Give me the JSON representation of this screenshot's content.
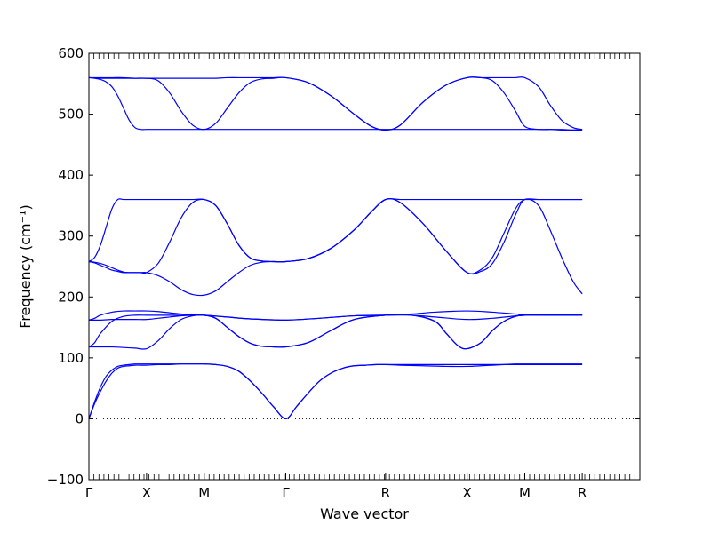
{
  "chart_data": {
    "type": "line",
    "title": "",
    "xlabel": "Wave vector",
    "ylabel": "Frequency (cm⁻¹)",
    "ylim": [
      -100,
      600
    ],
    "yticks": [
      -100,
      0,
      100,
      200,
      300,
      400,
      500,
      600
    ],
    "xlim": [
      0,
      4.778
    ],
    "high_symmetry_points": [
      {
        "label": "Γ",
        "x": 0.0
      },
      {
        "label": "X",
        "x": 0.5
      },
      {
        "label": "M",
        "x": 1.0
      },
      {
        "label": "Γ",
        "x": 1.707
      },
      {
        "label": "R",
        "x": 2.573
      },
      {
        "label": "X",
        "x": 3.28
      },
      {
        "label": "M",
        "x": 3.78
      },
      {
        "label": "R",
        "x": 4.278
      }
    ],
    "zero_line": {
      "y": 0,
      "style": "dotted"
    },
    "line_color": "#0000ff",
    "grid": false,
    "series": [
      {
        "x": [
          0,
          0.05,
          0.1,
          0.15,
          0.2,
          0.25,
          0.3,
          0.35,
          0.4,
          0.45,
          0.5,
          0.6,
          0.7,
          0.8,
          0.9,
          1.0,
          1.1,
          1.2,
          1.3,
          1.4,
          1.5,
          1.6,
          1.707,
          1.8,
          1.9,
          2.0,
          2.1,
          2.2,
          2.3,
          2.4,
          2.5,
          2.573,
          2.7,
          2.9,
          3.1,
          3.28,
          3.4,
          3.5,
          3.6,
          3.7,
          3.78,
          3.9,
          4.1,
          4.278
        ],
        "y": [
          0,
          25,
          45,
          62,
          75,
          83,
          86,
          87,
          88,
          88,
          88,
          89,
          89,
          90,
          90,
          90,
          89,
          86,
          78,
          62,
          42,
          20,
          0,
          20,
          42,
          62,
          75,
          83,
          87,
          88,
          89,
          89,
          89,
          89,
          89,
          89,
          89,
          89,
          89,
          89,
          89,
          89,
          89,
          89
        ]
      },
      {
        "x": [
          0,
          0.05,
          0.1,
          0.15,
          0.2,
          0.25,
          0.3,
          0.35,
          0.4,
          0.45,
          0.5,
          0.6,
          0.7,
          0.8,
          0.9,
          1.0,
          1.1,
          1.2,
          1.3,
          1.4,
          1.5,
          1.6,
          1.707,
          1.8,
          1.9,
          2.0,
          2.1,
          2.2,
          2.3,
          2.4,
          2.5,
          2.573,
          2.7,
          2.9,
          3.1,
          3.28,
          3.4,
          3.5,
          3.6,
          3.7,
          3.78,
          3.9,
          4.1,
          4.278
        ],
        "y": [
          0,
          28,
          52,
          70,
          80,
          86,
          88,
          89,
          90,
          90,
          90,
          90,
          90,
          90,
          90,
          90,
          89,
          86,
          78,
          62,
          42,
          20,
          0,
          20,
          42,
          62,
          75,
          83,
          87,
          88,
          89,
          89,
          88,
          87,
          86,
          86,
          87,
          88,
          89,
          90,
          90,
          90,
          90,
          90
        ]
      },
      {
        "x": [
          0,
          0.1,
          0.2,
          0.3,
          0.4,
          0.5,
          0.6,
          0.7,
          0.8,
          0.9,
          1.0,
          1.1,
          1.2,
          1.3,
          1.4,
          1.5,
          1.6,
          1.707,
          1.9,
          2.1,
          2.3,
          2.573,
          2.8,
          3.0,
          3.1,
          3.2,
          3.28,
          3.4,
          3.5,
          3.6,
          3.7,
          3.78,
          4.0,
          4.278
        ],
        "y": [
          118,
          118,
          118,
          117,
          116,
          115,
          128,
          148,
          163,
          169,
          170,
          165,
          150,
          135,
          124,
          119,
          118,
          118,
          125,
          145,
          163,
          170,
          170,
          160,
          140,
          120,
          115,
          125,
          145,
          160,
          168,
          170,
          170,
          170
        ]
      },
      {
        "x": [
          0,
          0.05,
          0.1,
          0.2,
          0.3,
          0.4,
          0.5,
          0.6,
          0.7,
          0.8,
          0.9,
          1.0,
          1.1,
          1.2,
          1.3,
          1.4,
          1.5,
          1.6,
          1.707,
          1.9,
          2.1,
          2.3,
          2.573,
          2.8,
          3.0,
          3.1,
          3.2,
          3.28,
          3.4,
          3.5,
          3.6,
          3.7,
          3.78,
          4.0,
          4.278
        ],
        "y": [
          118,
          125,
          140,
          160,
          168,
          170,
          170,
          170,
          170,
          170,
          170,
          170,
          165,
          150,
          135,
          124,
          119,
          118,
          118,
          125,
          145,
          163,
          170,
          170,
          160,
          140,
          120,
          115,
          125,
          145,
          160,
          168,
          170,
          170,
          170
        ]
      },
      {
        "x": [
          0,
          0.1,
          0.2,
          0.3,
          0.4,
          0.5,
          0.6,
          0.7,
          0.8,
          0.9,
          1.0,
          1.2,
          1.4,
          1.707,
          2.0,
          2.3,
          2.573,
          2.8,
          3.0,
          3.28,
          3.5,
          3.78,
          4.0,
          4.278
        ],
        "y": [
          162,
          162,
          163,
          163,
          163,
          163,
          165,
          167,
          169,
          170,
          170,
          167,
          164,
          162,
          165,
          169,
          170,
          170,
          167,
          163,
          165,
          170,
          170,
          170
        ]
      },
      {
        "x": [
          0,
          0.05,
          0.1,
          0.2,
          0.3,
          0.4,
          0.5,
          0.6,
          0.7,
          0.8,
          0.9,
          1.0,
          1.2,
          1.4,
          1.707,
          2.0,
          2.3,
          2.573,
          2.8,
          3.0,
          3.28,
          3.5,
          3.78,
          4.0,
          4.278
        ],
        "y": [
          162,
          165,
          170,
          175,
          177,
          177,
          177,
          176,
          174,
          172,
          171,
          170,
          167,
          164,
          162,
          165,
          169,
          170,
          172,
          175,
          177,
          175,
          171,
          171,
          171
        ]
      },
      {
        "x": [
          0,
          0.05,
          0.1,
          0.15,
          0.2,
          0.25,
          0.3,
          0.35,
          0.4,
          0.45,
          0.5,
          0.6,
          0.7,
          0.8,
          0.9,
          1.0,
          1.1,
          1.2,
          1.3,
          1.4,
          1.5,
          1.6,
          1.707,
          1.9,
          2.1,
          2.3,
          2.45,
          2.573,
          2.7,
          2.9,
          3.1,
          3.28,
          3.4,
          3.5,
          3.6,
          3.7,
          3.78,
          3.9,
          4.0,
          4.1,
          4.2,
          4.278
        ],
        "y": [
          258,
          257,
          255,
          252,
          248,
          244,
          241,
          240,
          240,
          240,
          240,
          235,
          225,
          212,
          204,
          203,
          210,
          225,
          240,
          252,
          257,
          258,
          258,
          263,
          280,
          310,
          340,
          360,
          355,
          320,
          275,
          240,
          242,
          255,
          290,
          335,
          360,
          350,
          310,
          265,
          225,
          205
        ]
      },
      {
        "x": [
          0,
          0.05,
          0.1,
          0.15,
          0.2,
          0.25,
          0.3,
          0.35,
          0.4,
          0.45,
          0.5,
          0.6,
          0.7,
          0.8,
          0.9,
          1.0,
          1.1,
          1.2,
          1.3,
          1.4,
          1.5,
          1.6,
          1.707,
          1.9,
          2.1,
          2.3,
          2.45,
          2.573,
          2.7,
          2.9,
          3.1,
          3.28,
          3.4,
          3.5,
          3.6,
          3.7,
          3.78,
          3.9,
          4.0,
          4.1,
          4.2,
          4.278
        ],
        "y": [
          258,
          256,
          252,
          248,
          244,
          242,
          240,
          240,
          240,
          240,
          240,
          255,
          290,
          330,
          355,
          360,
          350,
          320,
          285,
          264,
          259,
          258,
          258,
          263,
          280,
          310,
          340,
          360,
          360,
          360,
          360,
          360,
          360,
          360,
          360,
          360,
          360,
          360,
          360,
          360,
          360,
          360
        ]
      },
      {
        "x": [
          0,
          0.05,
          0.1,
          0.15,
          0.2,
          0.25,
          0.3,
          0.35,
          0.4,
          0.45,
          0.5,
          0.6,
          0.7,
          0.8,
          0.9,
          1.0,
          1.1,
          1.2,
          1.3,
          1.4,
          1.5,
          1.6,
          1.707,
          1.9,
          2.1,
          2.3,
          2.45,
          2.573,
          2.7,
          2.9,
          3.1,
          3.28,
          3.4,
          3.5,
          3.6,
          3.7,
          3.78,
          3.9,
          4.0,
          4.1,
          4.2,
          4.278
        ],
        "y": [
          258,
          265,
          285,
          315,
          345,
          360,
          360,
          360,
          360,
          360,
          360,
          360,
          360,
          360,
          360,
          360,
          350,
          320,
          285,
          264,
          259,
          258,
          258,
          263,
          280,
          310,
          340,
          360,
          355,
          320,
          275,
          240,
          245,
          265,
          305,
          345,
          360,
          360,
          360,
          360,
          360,
          360
        ]
      },
      {
        "x": [
          0,
          0.05,
          0.1,
          0.15,
          0.2,
          0.25,
          0.3,
          0.35,
          0.4,
          0.45,
          0.5,
          0.6,
          0.7,
          0.8,
          0.9,
          1.0,
          1.2,
          1.4,
          1.6,
          1.707,
          1.9,
          2.1,
          2.3,
          2.573,
          2.8,
          3.0,
          3.1,
          3.28,
          3.4,
          3.5,
          3.6,
          3.7,
          3.78,
          3.9,
          4.0,
          4.1,
          4.2,
          4.278
        ],
        "y": [
          560,
          559,
          557,
          553,
          545,
          530,
          510,
          490,
          478,
          475,
          475,
          475,
          475,
          475,
          475,
          475,
          475,
          475,
          475,
          475,
          475,
          475,
          475,
          475,
          475,
          475,
          475,
          475,
          475,
          475,
          475,
          475,
          475,
          475,
          475,
          474,
          474,
          474
        ]
      },
      {
        "x": [
          0,
          0.1,
          0.2,
          0.3,
          0.4,
          0.5,
          0.6,
          0.7,
          0.8,
          0.9,
          1.0,
          1.1,
          1.2,
          1.3,
          1.4,
          1.5,
          1.6,
          1.707,
          1.9,
          2.1,
          2.3,
          2.45,
          2.573,
          2.7,
          2.9,
          3.1,
          3.28,
          3.4,
          3.5,
          3.6,
          3.7,
          3.78,
          3.9,
          4.0,
          4.1,
          4.2,
          4.278
        ],
        "y": [
          560,
          559,
          559,
          559,
          559,
          559,
          555,
          535,
          505,
          482,
          475,
          485,
          510,
          535,
          552,
          558,
          559,
          560,
          552,
          530,
          500,
          480,
          474,
          482,
          520,
          548,
          560,
          560,
          555,
          535,
          505,
          480,
          475,
          475,
          475,
          474,
          474
        ]
      },
      {
        "x": [
          0,
          0.1,
          0.2,
          0.3,
          0.4,
          0.5,
          0.6,
          0.7,
          0.8,
          0.9,
          1.0,
          1.1,
          1.2,
          1.3,
          1.4,
          1.5,
          1.6,
          1.707,
          1.9,
          2.1,
          2.3,
          2.45,
          2.573,
          2.7,
          2.9,
          3.1,
          3.28,
          3.4,
          3.5,
          3.6,
          3.7,
          3.78,
          3.9,
          4.0,
          4.1,
          4.2,
          4.278
        ],
        "y": [
          560,
          560,
          560,
          560,
          559,
          559,
          559,
          559,
          559,
          559,
          559,
          559,
          560,
          560,
          560,
          560,
          560,
          560,
          552,
          530,
          500,
          480,
          474,
          482,
          520,
          548,
          560,
          560,
          560,
          560,
          560,
          560,
          545,
          515,
          490,
          478,
          475
        ]
      }
    ]
  }
}
